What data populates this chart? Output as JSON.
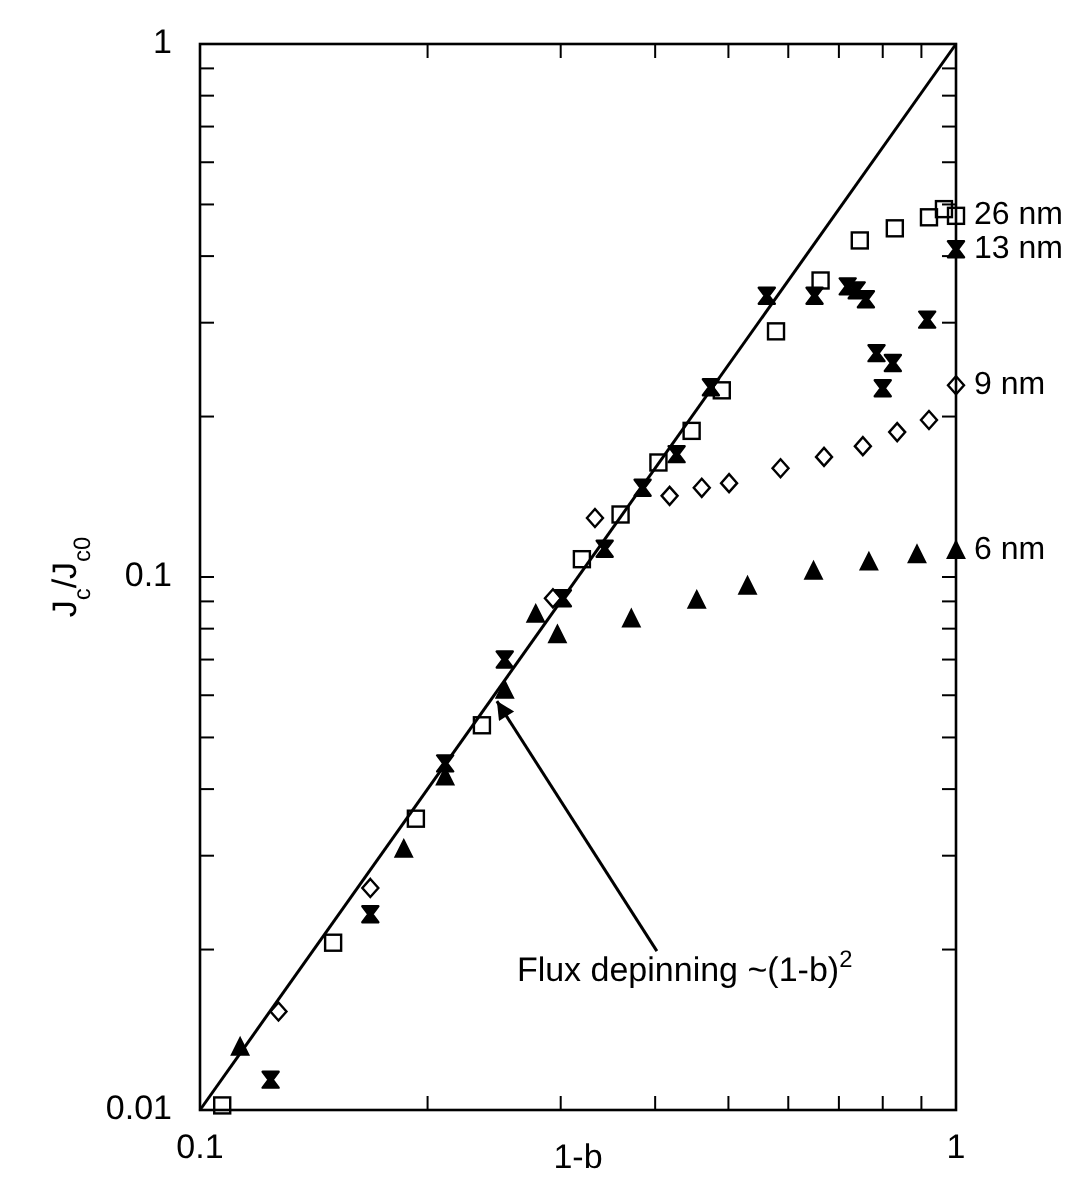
{
  "chart_data": {
    "type": "scatter",
    "xlabel": "1-b",
    "ylabel": "J$_{c}$/J$_{c0}$",
    "log": "xy",
    "grid": false,
    "legend": "right",
    "xlim": [
      0.1,
      1
    ],
    "ylim": [
      0.01,
      1
    ],
    "xticks": [
      0.1,
      {
        "value": 0.2,
        "label": null
      },
      {
        "value": 0.3,
        "label": null
      },
      {
        "value": 0.4,
        "label": null
      },
      {
        "value": 0.5,
        "label": null
      },
      {
        "value": 0.6,
        "label": null
      },
      {
        "value": 0.7,
        "label": null
      },
      {
        "value": 0.8,
        "label": null
      },
      {
        "value": 0.9,
        "label": null
      },
      1
    ],
    "yticks": [
      0.01,
      {
        "value": 0.02,
        "label": null
      },
      {
        "value": 0.03,
        "label": null
      },
      {
        "value": 0.04,
        "label": null
      },
      {
        "value": 0.05,
        "label": null
      },
      {
        "value": 0.06,
        "label": null
      },
      {
        "value": 0.07,
        "label": null
      },
      {
        "value": 0.08,
        "label": null
      },
      {
        "value": 0.09,
        "label": null
      },
      0.1,
      {
        "value": 0.2,
        "label": null
      },
      {
        "value": 0.3,
        "label": null
      },
      {
        "value": 0.4,
        "label": null
      },
      {
        "value": 0.5,
        "label": null
      },
      {
        "value": 0.6,
        "label": null
      },
      {
        "value": 0.7,
        "label": null
      },
      {
        "value": 0.8,
        "label": null
      },
      {
        "value": 0.9,
        "label": null
      },
      1
    ],
    "series": [
      {
        "name": "26 nm",
        "color": "#000000",
        "marker": "square",
        "x": [
          1.0,
          0.964,
          0.921,
          0.83,
          0.746,
          0.662,
          0.578,
          0.49,
          0.447,
          0.404,
          0.36,
          0.32,
          0.236,
          0.193,
          0.15,
          0.107
        ],
        "values": [
          0.476,
          0.49,
          0.473,
          0.451,
          0.428,
          0.36,
          0.289,
          0.224,
          0.188,
          0.164,
          0.131,
          0.108,
          0.0527,
          0.0352,
          0.0206,
          0.0102
        ]
      },
      {
        "name": "13 nm",
        "color": "#000000",
        "marker": "cross",
        "x": [
          1.0,
          0.916,
          0.825,
          0.8,
          0.785,
          0.76,
          0.739,
          0.719,
          0.65,
          0.562,
          0.474,
          0.427,
          0.385,
          0.343,
          0.302,
          0.253,
          0.211,
          0.168,
          0.124
        ],
        "values": [
          0.412,
          0.304,
          0.252,
          0.226,
          0.263,
          0.332,
          0.345,
          0.351,
          0.337,
          0.337,
          0.227,
          0.17,
          0.147,
          0.113,
          0.0912,
          0.07,
          0.0447,
          0.0233,
          0.0114
        ]
      },
      {
        "name": "9 nm",
        "color": "#000000",
        "marker": "diamond",
        "x": [
          1.0,
          0.921,
          0.836,
          0.753,
          0.669,
          0.586,
          0.501,
          0.461,
          0.418,
          0.333,
          0.293,
          0.168,
          0.127
        ],
        "values": [
          0.229,
          0.197,
          0.187,
          0.176,
          0.168,
          0.16,
          0.15,
          0.147,
          0.142,
          0.129,
          0.0912,
          0.0261,
          0.0153
        ]
      },
      {
        "name": "6 nm",
        "color": "#000000",
        "marker": "triangle",
        "x": [
          1.0,
          0.888,
          0.767,
          0.648,
          0.53,
          0.454,
          0.372,
          0.297,
          0.278,
          0.253,
          0.211,
          0.186,
          0.113
        ],
        "values": [
          0.112,
          0.11,
          0.1065,
          0.1024,
          0.096,
          0.0903,
          0.0833,
          0.0778,
          0.085,
          0.0612,
          0.0421,
          0.0308,
          0.0131
        ]
      },
      {
        "type": "line",
        "color": "#000000",
        "line_style": "solid",
        "x": [
          0.1,
          1
        ],
        "values": [
          0.01,
          1
        ]
      }
    ],
    "annotations": [
      {
        "text": "Flux depinning ~(1-b)$^{2}$",
        "x": 0.247,
        "y": 0.0585
      }
    ]
  }
}
